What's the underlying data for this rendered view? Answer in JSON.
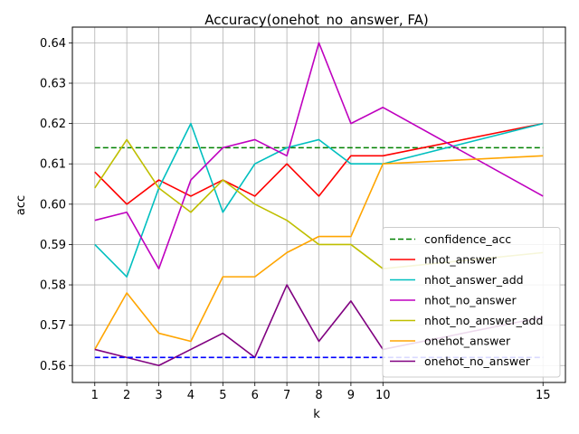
{
  "chart_data": {
    "type": "line",
    "title": "Accuracy(onehot_no_answer, FA)",
    "xlabel": "k",
    "ylabel": "acc",
    "x": [
      1,
      2,
      3,
      4,
      5,
      6,
      7,
      8,
      9,
      10,
      15
    ],
    "xlim": [
      0.3,
      15.7
    ],
    "ylim": [
      0.5558,
      0.6439
    ],
    "xticks": [
      1,
      2,
      3,
      4,
      5,
      6,
      7,
      8,
      9,
      10,
      15
    ],
    "yticks": [
      0.56,
      0.57,
      0.58,
      0.59,
      0.6,
      0.61,
      0.62,
      0.63,
      0.64
    ],
    "grid": true,
    "legend_position": "lower-right",
    "series": [
      {
        "name": "confidence_acc",
        "color": "#008000",
        "dashed": true,
        "values": [
          0.614,
          0.614,
          0.614,
          0.614,
          0.614,
          0.614,
          0.614,
          0.614,
          0.614,
          0.614,
          0.614
        ]
      },
      {
        "name": "nhot_answer",
        "color": "#ff0000",
        "dashed": false,
        "values": [
          0.608,
          0.6,
          0.606,
          0.602,
          0.606,
          0.602,
          0.61,
          0.602,
          0.612,
          0.612,
          0.62
        ]
      },
      {
        "name": "nhot_answer_add",
        "color": "#00bfbf",
        "dashed": false,
        "values": [
          0.59,
          0.582,
          0.604,
          0.62,
          0.598,
          0.61,
          0.614,
          0.616,
          0.61,
          0.61,
          0.62
        ]
      },
      {
        "name": "nhot_no_answer",
        "color": "#bf00bf",
        "dashed": false,
        "values": [
          0.596,
          0.598,
          0.584,
          0.606,
          0.614,
          0.616,
          0.612,
          0.64,
          0.62,
          0.624,
          0.602
        ]
      },
      {
        "name": "nhot_no_answer_add",
        "color": "#bfbf00",
        "dashed": false,
        "values": [
          0.604,
          0.616,
          0.604,
          0.598,
          0.606,
          0.6,
          0.596,
          0.59,
          0.59,
          0.584,
          0.588
        ]
      },
      {
        "name": "onehot_answer",
        "color": "#ffa500",
        "dashed": false,
        "values": [
          0.564,
          0.578,
          0.568,
          0.566,
          0.582,
          0.582,
          0.588,
          0.592,
          0.592,
          0.61,
          0.612
        ]
      },
      {
        "name": "onehot_no_answer",
        "color": "#800080",
        "dashed": false,
        "values": [
          0.564,
          0.562,
          0.56,
          0.564,
          0.568,
          0.562,
          0.58,
          0.566,
          0.576,
          0.564,
          0.572
        ]
      },
      {
        "name": "",
        "color": "#0000ff",
        "dashed": true,
        "values": [
          0.562,
          0.562,
          0.562,
          0.562,
          0.562,
          0.562,
          0.562,
          0.562,
          0.562,
          0.562,
          0.562
        ]
      }
    ]
  }
}
